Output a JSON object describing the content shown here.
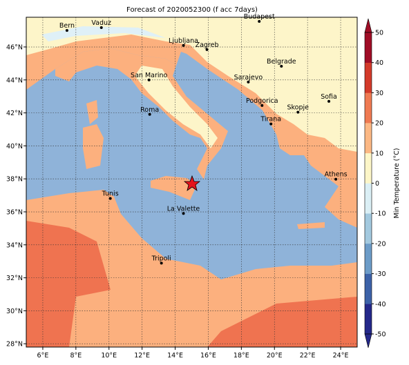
{
  "title": "Forecast of 2020052300 (f acc 7days)",
  "map": {
    "xlim": [
      5,
      25
    ],
    "ylim": [
      27.8,
      47.8
    ],
    "grid": true,
    "xticks": [
      {
        "value": 6,
        "label": "6°E"
      },
      {
        "value": 8,
        "label": "8°E"
      },
      {
        "value": 10,
        "label": "10°E"
      },
      {
        "value": 12,
        "label": "12°E"
      },
      {
        "value": 14,
        "label": "14°E"
      },
      {
        "value": 16,
        "label": "16°E"
      },
      {
        "value": 18,
        "label": "18°E"
      },
      {
        "value": 20,
        "label": "20°E"
      },
      {
        "value": 22,
        "label": "22°E"
      },
      {
        "value": 24,
        "label": "24°E"
      }
    ],
    "yticks": [
      {
        "value": 28,
        "label": "28°N"
      },
      {
        "value": 30,
        "label": "30°N"
      },
      {
        "value": 32,
        "label": "32°N"
      },
      {
        "value": 34,
        "label": "34°N"
      },
      {
        "value": 36,
        "label": "36°N"
      },
      {
        "value": 38,
        "label": "38°N"
      },
      {
        "value": 40,
        "label": "40°N"
      },
      {
        "value": 42,
        "label": "42°N"
      },
      {
        "value": 44,
        "label": "44°N"
      },
      {
        "value": 46,
        "label": "46°N"
      }
    ],
    "cities": [
      {
        "name": "Bern",
        "lon": 7.46,
        "lat": 47.0
      },
      {
        "name": "Vaduz",
        "lon": 9.54,
        "lat": 47.17
      },
      {
        "name": "Budapest",
        "lon": 19.08,
        "lat": 47.55
      },
      {
        "name": "Ljubljana",
        "lon": 14.5,
        "lat": 46.09
      },
      {
        "name": "Zagreb",
        "lon": 15.92,
        "lat": 45.84
      },
      {
        "name": "Belgrade",
        "lon": 20.42,
        "lat": 44.83
      },
      {
        "name": "San Marino",
        "lon": 12.42,
        "lat": 44.0
      },
      {
        "name": "Sarajevo",
        "lon": 18.42,
        "lat": 43.87
      },
      {
        "name": "Sofia",
        "lon": 23.29,
        "lat": 42.7
      },
      {
        "name": "Podgorica",
        "lon": 19.25,
        "lat": 42.45
      },
      {
        "name": "Skopje",
        "lon": 21.42,
        "lat": 42.04
      },
      {
        "name": "Roma",
        "lon": 12.46,
        "lat": 41.91
      },
      {
        "name": "Tirana",
        "lon": 19.79,
        "lat": 41.33
      },
      {
        "name": "Athens",
        "lon": 23.71,
        "lat": 37.98
      },
      {
        "name": "Tunis",
        "lon": 10.08,
        "lat": 36.81
      },
      {
        "name": "La Valette",
        "lon": 14.5,
        "lat": 35.9
      },
      {
        "name": "Tripoli",
        "lon": 13.17,
        "lat": 32.89
      }
    ]
  },
  "colorbar": {
    "label": "Min Temperature (°C)",
    "lim": [
      -50,
      50
    ],
    "ticks": [
      -50,
      -40,
      -30,
      -20,
      -10,
      0,
      10,
      20,
      30,
      40,
      50
    ],
    "colors": [
      "#24288a",
      "#3c62a8",
      "#6c9cc8",
      "#a3c9df",
      "#dbeff5",
      "#fdf6c8",
      "#fcb884",
      "#ef7a52",
      "#d33a2a",
      "#a00d26"
    ]
  }
}
